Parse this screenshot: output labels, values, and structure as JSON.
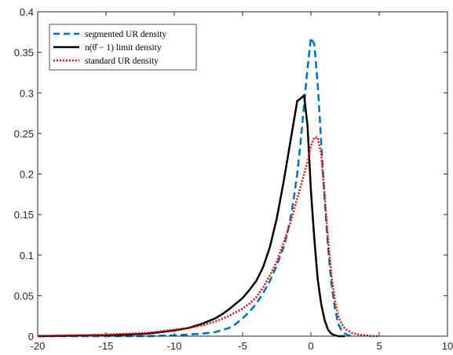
{
  "chart_data": {
    "type": "line",
    "xlim": [
      -20,
      10
    ],
    "ylim": [
      0,
      0.4
    ],
    "x_ticks": [
      -20,
      -15,
      -10,
      -5,
      0,
      5,
      10
    ],
    "y_ticks": [
      0,
      0.05,
      0.1,
      0.15,
      0.2,
      0.25,
      0.3,
      0.35,
      0.4
    ],
    "x_tick_labels": [
      "-20",
      "-15",
      "-10",
      "-5",
      "0",
      "5",
      "10"
    ],
    "y_tick_labels": [
      "0",
      "0.05",
      "0.1",
      "0.15",
      "0.2",
      "0.25",
      "0.3",
      "0.35",
      "0.4"
    ],
    "grid": false,
    "legend_position": "top-left",
    "series": [
      {
        "name": "segmented UR density",
        "color": "#0072BD",
        "style": "dashed",
        "x": [
          -20,
          -15,
          -12,
          -10,
          -9,
          -8,
          -7,
          -6,
          -5.5,
          -5,
          -4.5,
          -4,
          -3.5,
          -3,
          -2.5,
          -2,
          -1.75,
          -1.5,
          -1.25,
          -1,
          -0.75,
          -0.5,
          -0.25,
          0,
          0.25,
          0.5,
          0.75,
          1,
          1.25,
          1.5,
          1.75,
          2,
          2.25,
          2.5,
          2.75,
          3
        ],
        "y": [
          0.0,
          0.0,
          0.0,
          0.001,
          0.002,
          0.003,
          0.005,
          0.01,
          0.015,
          0.022,
          0.03,
          0.04,
          0.053,
          0.068,
          0.087,
          0.11,
          0.125,
          0.145,
          0.17,
          0.2,
          0.24,
          0.285,
          0.33,
          0.368,
          0.36,
          0.31,
          0.24,
          0.17,
          0.11,
          0.065,
          0.035,
          0.015,
          0.007,
          0.003,
          0.001,
          0.0
        ]
      },
      {
        "name": "n(θ̂ − 1) limit density",
        "color": "#000000",
        "style": "solid",
        "x": [
          -20,
          -15,
          -12,
          -11,
          -10,
          -9,
          -8,
          -7,
          -6.5,
          -6,
          -5.5,
          -5,
          -4.5,
          -4,
          -3.5,
          -3,
          -2.5,
          -2,
          -1.5,
          -1.25,
          -1,
          -0.75,
          -0.5,
          -0.25,
          0,
          0.25,
          0.5,
          0.75,
          1,
          1.25,
          1.5,
          1.75,
          2,
          2.25,
          2.5
        ],
        "y": [
          0.0,
          0.001,
          0.003,
          0.005,
          0.007,
          0.01,
          0.015,
          0.022,
          0.027,
          0.033,
          0.04,
          0.047,
          0.057,
          0.068,
          0.085,
          0.11,
          0.145,
          0.19,
          0.24,
          0.265,
          0.29,
          0.293,
          0.297,
          0.26,
          0.18,
          0.12,
          0.07,
          0.04,
          0.02,
          0.008,
          0.003,
          0.001,
          0.0,
          0.0,
          0.0
        ]
      },
      {
        "name": "standard UR density",
        "color": "#FF0000",
        "style": "dotted",
        "x": [
          -20,
          -15,
          -12,
          -11,
          -10,
          -9,
          -8,
          -7,
          -6,
          -5,
          -4.5,
          -4,
          -3.5,
          -3,
          -2.5,
          -2,
          -1.5,
          -1,
          -0.5,
          -0.25,
          0,
          0.25,
          0.5,
          0.75,
          1,
          1.25,
          1.5,
          1.75,
          2,
          2.25,
          2.5,
          3,
          3.5,
          4,
          4.5,
          5
        ],
        "y": [
          0.0,
          0.002,
          0.004,
          0.006,
          0.008,
          0.01,
          0.013,
          0.018,
          0.025,
          0.034,
          0.04,
          0.048,
          0.06,
          0.075,
          0.092,
          0.115,
          0.14,
          0.17,
          0.2,
          0.215,
          0.235,
          0.245,
          0.245,
          0.225,
          0.175,
          0.12,
          0.075,
          0.045,
          0.025,
          0.015,
          0.009,
          0.004,
          0.002,
          0.001,
          0.0,
          0.0
        ]
      }
    ]
  }
}
